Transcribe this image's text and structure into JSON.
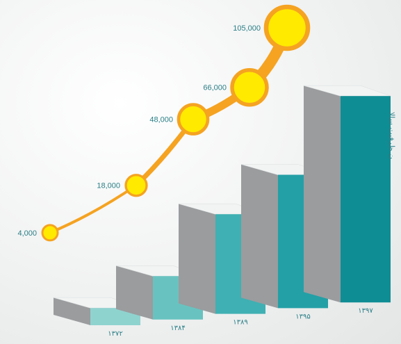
{
  "chart_data": {
    "type": "bar",
    "categories": [
      "۱۳۷۲",
      "۱۳۸۴",
      "۱۳۸۹",
      "۱۳۹۵",
      "۱۳۹۷"
    ],
    "values": [
      4000,
      18000,
      48000,
      66000,
      105000
    ],
    "value_labels": [
      "4,000",
      "18,000",
      "48,000",
      "66,000",
      "105,000"
    ],
    "ylabel": "ن ظرفیت سالا",
    "title": "",
    "xlabel": "",
    "ylim": [
      0,
      105000
    ],
    "has_trend_line": true,
    "grid": false
  },
  "colors": {
    "bar_front_light": "#8fd3cf",
    "bar_front_dark": "#0f8d94",
    "bar_side": "#9a9c9e",
    "bar_top": "#f2f3f3",
    "trend_line": "#f5a321",
    "marker_fill": "#ffea00",
    "marker_stroke": "#f5a321",
    "label": "#2a7f86"
  }
}
